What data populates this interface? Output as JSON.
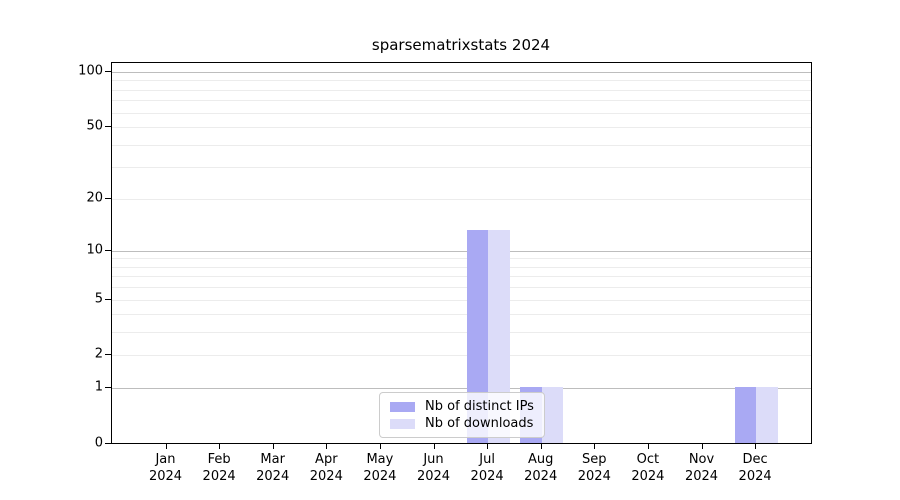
{
  "title": "sparsematrixstats 2024",
  "chart_data": {
    "type": "bar",
    "title": "sparsematrixstats 2024",
    "year": "2024",
    "categories": [
      "Jan",
      "Feb",
      "Mar",
      "Apr",
      "May",
      "Jun",
      "Jul",
      "Aug",
      "Sep",
      "Oct",
      "Nov",
      "Dec"
    ],
    "series": [
      {
        "name": "Nb of distinct IPs",
        "color": "#a9a9f3",
        "values": [
          0,
          0,
          0,
          0,
          0,
          0,
          13,
          1,
          0,
          0,
          0,
          1
        ]
      },
      {
        "name": "Nb of downloads",
        "color": "#dcdcf9",
        "values": [
          0,
          0,
          0,
          0,
          0,
          0,
          13,
          1,
          0,
          0,
          0,
          1
        ]
      }
    ],
    "y_axis": {
      "scale": "log10(1+x)",
      "ticks": [
        0,
        1,
        2,
        5,
        10,
        20,
        50,
        100
      ],
      "major_gridlines": [
        1,
        10,
        100
      ],
      "minor_gridlines": [
        2,
        3,
        4,
        5,
        6,
        7,
        8,
        9,
        20,
        30,
        40,
        50,
        60,
        70,
        80,
        90
      ],
      "top_value": 112
    },
    "x_axis": {
      "tick_label_line2": "2024"
    },
    "legend": {
      "position": "lower center",
      "entries": [
        "Nb of distinct IPs",
        "Nb of downloads"
      ]
    },
    "grid": true
  }
}
